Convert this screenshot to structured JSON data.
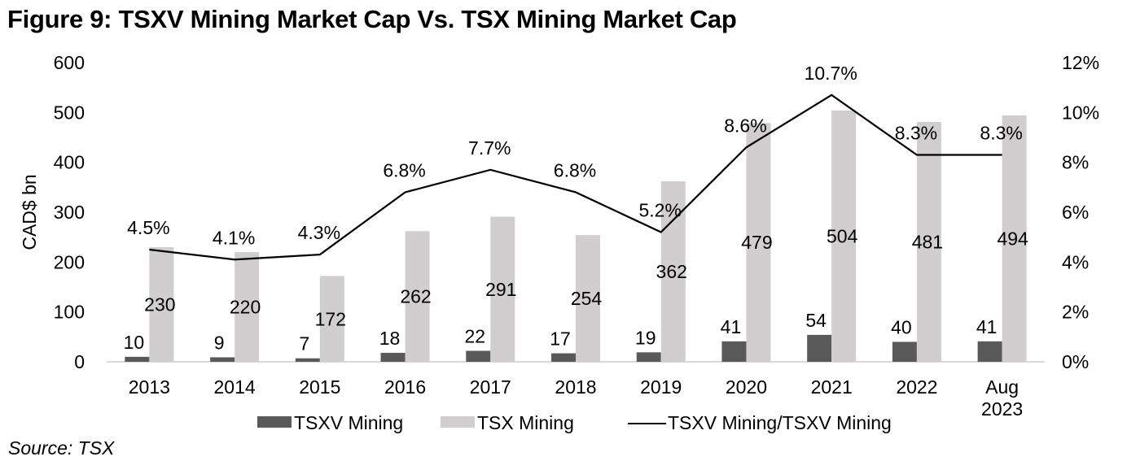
{
  "title": "Figure 9: TSXV Mining Market Cap Vs. TSX Mining Market Cap",
  "source": "Source: TSX",
  "chart_data": {
    "type": "bar",
    "title": "Figure 9: TSXV Mining Market Cap Vs. TSX Mining Market Cap",
    "categories": [
      "2013",
      "2014",
      "2015",
      "2016",
      "2017",
      "2018",
      "2019",
      "2020",
      "2021",
      "2022",
      "Aug 2023"
    ],
    "category_lines": [
      [
        "2013"
      ],
      [
        "2014"
      ],
      [
        "2015"
      ],
      [
        "2016"
      ],
      [
        "2017"
      ],
      [
        "2018"
      ],
      [
        "2019"
      ],
      [
        "2020"
      ],
      [
        "2021"
      ],
      [
        "2022"
      ],
      [
        "Aug",
        "2023"
      ]
    ],
    "series": [
      {
        "name": "TSXV Mining",
        "type": "bar",
        "axis": "left",
        "color": "#595959",
        "values": [
          10,
          9,
          7,
          18,
          22,
          17,
          19,
          41,
          54,
          40,
          41
        ],
        "labels": [
          "10",
          "9",
          "7",
          "18",
          "22",
          "17",
          "19",
          "41",
          "54",
          "40",
          "41"
        ]
      },
      {
        "name": "TSX Mining",
        "type": "bar",
        "axis": "left",
        "color": "#d0cece",
        "values": [
          230,
          220,
          172,
          262,
          291,
          254,
          362,
          479,
          504,
          481,
          494
        ],
        "labels": [
          "230",
          "220",
          "172",
          "262",
          "291",
          "254",
          "362",
          "479",
          "504",
          "481",
          "494"
        ]
      },
      {
        "name": "TSXV Mining/TSXV Mining",
        "type": "line",
        "axis": "right",
        "color": "#000000",
        "values": [
          4.5,
          4.1,
          4.3,
          6.8,
          7.7,
          6.8,
          5.2,
          8.6,
          10.7,
          8.3,
          8.3
        ],
        "labels": [
          "4.5%",
          "4.1%",
          "4.3%",
          "6.8%",
          "7.7%",
          "6.8%",
          "5.2%",
          "8.6%",
          "10.7%",
          "8.3%",
          "8.3%"
        ]
      }
    ],
    "ylabel": "CAD$ bn",
    "xlabel": "",
    "ylim": [
      0,
      600
    ],
    "yticks": [
      "0",
      "100",
      "200",
      "300",
      "400",
      "500",
      "600"
    ],
    "y2lim": [
      0,
      12
    ],
    "y2ticks": [
      "0%",
      "2%",
      "4%",
      "6%",
      "8%",
      "10%",
      "12%"
    ],
    "grid": false,
    "legend": "bottom",
    "legend_entries": [
      "TSXV Mining",
      "TSX Mining",
      "TSXV Mining/TSXV Mining"
    ]
  }
}
